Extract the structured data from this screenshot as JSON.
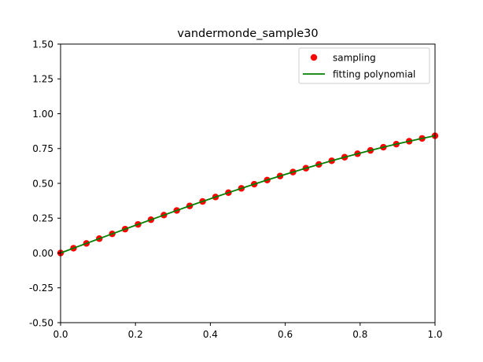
{
  "chart_data": {
    "type": "scatter",
    "title": "vandermonde_sample30",
    "xlabel": "",
    "ylabel": "",
    "xlim": [
      0.0,
      1.0
    ],
    "ylim": [
      -0.5,
      1.5
    ],
    "x_ticks": [
      "0.0",
      "0.2",
      "0.4",
      "0.6",
      "0.8",
      "1.0"
    ],
    "y_ticks": [
      "-0.50",
      "-0.25",
      "0.00",
      "0.25",
      "0.50",
      "0.75",
      "1.00",
      "1.25",
      "1.50"
    ],
    "grid": false,
    "legend_position": "top-right",
    "series": [
      {
        "name": "sampling",
        "kind": "markers",
        "color": "#ff0000",
        "x": [
          0.0,
          0.0345,
          0.069,
          0.1034,
          0.1379,
          0.1724,
          0.2069,
          0.2414,
          0.2759,
          0.3103,
          0.3448,
          0.3793,
          0.4138,
          0.4483,
          0.4828,
          0.5172,
          0.5517,
          0.5862,
          0.6207,
          0.6552,
          0.6897,
          0.7241,
          0.7586,
          0.7931,
          0.8276,
          0.8621,
          0.8966,
          0.931,
          0.9655,
          1.0
        ],
        "y": [
          0.0,
          0.0345,
          0.0689,
          0.1032,
          0.1375,
          0.1715,
          0.2054,
          0.2391,
          0.2724,
          0.3054,
          0.3381,
          0.3702,
          0.402,
          0.4333,
          0.4641,
          0.4942,
          0.5238,
          0.5527,
          0.5812,
          0.6089,
          0.6359,
          0.6623,
          0.6879,
          0.7127,
          0.7366,
          0.7597,
          0.7815,
          0.8024,
          0.8226,
          0.8415
        ]
      },
      {
        "name": "fitting polynomial",
        "kind": "line",
        "color": "#008000",
        "x": [
          0.0,
          0.0345,
          0.069,
          0.1034,
          0.1379,
          0.1724,
          0.2069,
          0.2414,
          0.2759,
          0.3103,
          0.3448,
          0.3793,
          0.4138,
          0.4483,
          0.4828,
          0.5172,
          0.5517,
          0.5862,
          0.6207,
          0.6552,
          0.6897,
          0.7241,
          0.7586,
          0.7931,
          0.8276,
          0.8621,
          0.8966,
          0.931,
          0.9655,
          1.0
        ],
        "y": [
          0.0,
          0.0345,
          0.0689,
          0.1032,
          0.1375,
          0.1715,
          0.2054,
          0.2391,
          0.2724,
          0.3054,
          0.3381,
          0.3702,
          0.402,
          0.4333,
          0.4641,
          0.4942,
          0.5238,
          0.5527,
          0.5812,
          0.6089,
          0.6359,
          0.6623,
          0.6879,
          0.7127,
          0.7366,
          0.7597,
          0.7815,
          0.8024,
          0.8226,
          0.8415
        ]
      }
    ]
  }
}
